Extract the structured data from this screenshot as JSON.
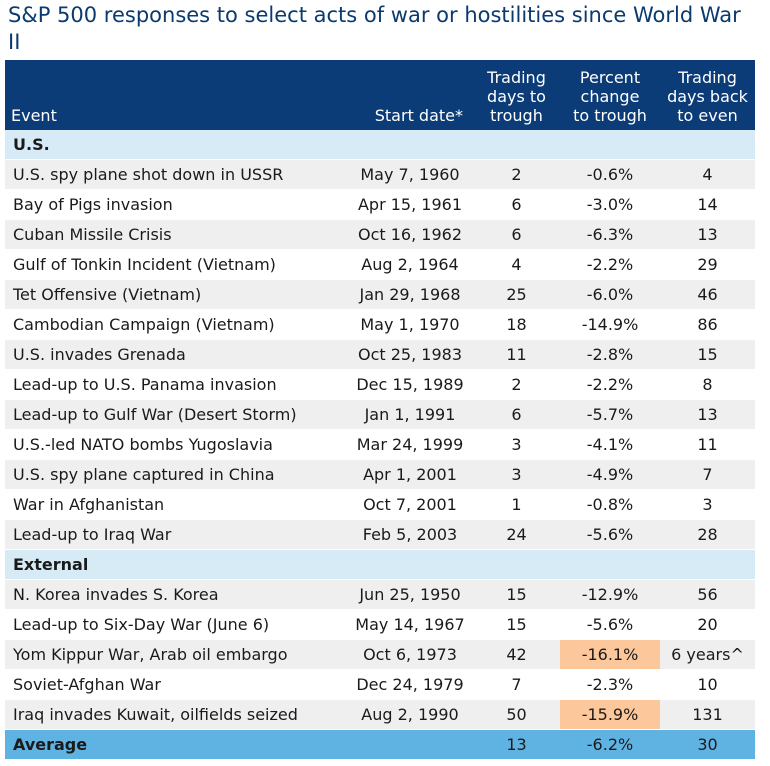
{
  "title": "S&P 500 responses to select acts of war or hostilities since World War II",
  "headers": {
    "event": "Event",
    "start_date": "Start date*",
    "days_to_trough": [
      "Trading",
      "days to",
      "trough"
    ],
    "pct_change": [
      "Percent",
      "change",
      "to trough"
    ],
    "days_back": [
      "Trading",
      "days back",
      "to even"
    ]
  },
  "sections": [
    {
      "label": "U.S.",
      "rows": [
        {
          "event": "U.S. spy plane shot down in USSR",
          "date": "May 7, 1960",
          "days": "2",
          "pct": "-0.6%",
          "back": "4"
        },
        {
          "event": "Bay of Pigs invasion",
          "date": "Apr 15, 1961",
          "days": "6",
          "pct": "-3.0%",
          "back": "14"
        },
        {
          "event": "Cuban Missile Crisis",
          "date": "Oct 16, 1962",
          "days": "6",
          "pct": "-6.3%",
          "back": "13"
        },
        {
          "event": "Gulf of Tonkin Incident (Vietnam)",
          "date": "Aug 2, 1964",
          "days": "4",
          "pct": "-2.2%",
          "back": "29"
        },
        {
          "event": "Tet Offensive (Vietnam)",
          "date": "Jan 29, 1968",
          "days": "25",
          "pct": "-6.0%",
          "back": "46"
        },
        {
          "event": "Cambodian Campaign (Vietnam)",
          "date": "May 1, 1970",
          "days": "18",
          "pct": "-14.9%",
          "back": "86"
        },
        {
          "event": "U.S. invades Grenada",
          "date": "Oct 25, 1983",
          "days": "11",
          "pct": "-2.8%",
          "back": "15"
        },
        {
          "event": "Lead-up to U.S. Panama invasion",
          "date": "Dec 15, 1989",
          "days": "2",
          "pct": "-2.2%",
          "back": "8"
        },
        {
          "event": "Lead-up to Gulf War (Desert Storm)",
          "date": "Jan 1, 1991",
          "days": "6",
          "pct": "-5.7%",
          "back": "13"
        },
        {
          "event": "U.S.-led NATO bombs Yugoslavia",
          "date": "Mar 24, 1999",
          "days": "3",
          "pct": "-4.1%",
          "back": "11"
        },
        {
          "event": "U.S. spy plane captured in China",
          "date": "Apr 1, 2001",
          "days": "3",
          "pct": "-4.9%",
          "back": "7"
        },
        {
          "event": "War in Afghanistan",
          "date": "Oct 7, 2001",
          "days": "1",
          "pct": "-0.8%",
          "back": "3"
        },
        {
          "event": "Lead-up to Iraq War",
          "date": "Feb 5, 2003",
          "days": "24",
          "pct": "-5.6%",
          "back": "28"
        }
      ]
    },
    {
      "label": "External",
      "rows": [
        {
          "event": "N. Korea invades S. Korea",
          "date": "Jun 25, 1950",
          "days": "15",
          "pct": "-12.9%",
          "back": "56"
        },
        {
          "event": "Lead-up to Six-Day War (June 6)",
          "date": "May 14, 1967",
          "days": "15",
          "pct": "-5.6%",
          "back": "20"
        },
        {
          "event": "Yom Kippur War, Arab oil embargo",
          "date": "Oct 6, 1973",
          "days": "42",
          "pct": "-16.1%",
          "back": "6 years^",
          "highlight": true
        },
        {
          "event": "Soviet-Afghan War",
          "date": "Dec 24, 1979",
          "days": "7",
          "pct": "-2.3%",
          "back": "10"
        },
        {
          "event": "Iraq invades Kuwait, oilfields seized",
          "date": "Aug 2, 1990",
          "days": "50",
          "pct": "-15.9%",
          "back": "131",
          "highlight": true
        }
      ]
    }
  ],
  "average": {
    "label": "Average",
    "date": "",
    "days": "13",
    "pct": "-6.2%",
    "back": "30"
  },
  "colors": {
    "header": "#0b3c78",
    "section": "#d7ebf6",
    "alt_row": "#f0efef",
    "highlight": "#fcc79a",
    "average": "#5fb3e2",
    "title": "#0b3a6e"
  }
}
